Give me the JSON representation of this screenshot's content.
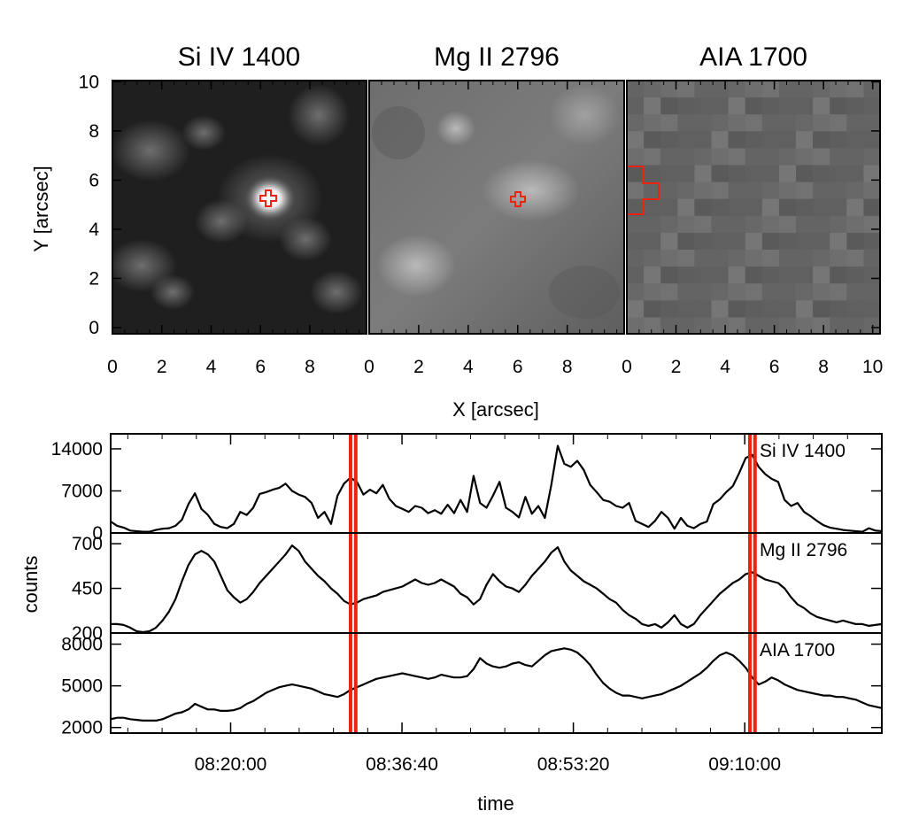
{
  "chart_data": [
    {
      "type": "image-panels",
      "panels": [
        {
          "title": "Si IV 1400",
          "style": "bright-kernel",
          "marker": "cross"
        },
        {
          "title": "Mg II 2796",
          "style": "diffuse",
          "marker": "cross"
        },
        {
          "title": "AIA 1700",
          "style": "pixelated",
          "marker": "slit-outline"
        }
      ],
      "xlabel": "X [arcsec]",
      "ylabel": "Y [arcsec]",
      "xlim": [
        0,
        10.3
      ],
      "ylim": [
        0,
        10.3
      ],
      "x_ticks_left": [
        "0",
        "2",
        "4",
        "6",
        "8"
      ],
      "x_ticks_last": [
        "0",
        "2",
        "4",
        "6",
        "8",
        "10"
      ],
      "y_ticks": [
        "0",
        "2",
        "4",
        "6",
        "8",
        "10"
      ],
      "markers_arcsec": {
        "cross_panel1": [
          6.1,
          5.2
        ],
        "cross_panel2": [
          6.0,
          5.3
        ]
      }
    },
    {
      "type": "line",
      "xlabel": "time",
      "ylabel": "counts",
      "x_ticks": [
        "08:20:00",
        "08:36:40",
        "08:53:20",
        "09:10:00"
      ],
      "x_tick_seconds": [
        30000,
        31000,
        32000,
        33000
      ],
      "xlim_seconds": [
        29300,
        33800
      ],
      "vertical_lines_seconds": [
        30700,
        30730,
        33030,
        33060
      ],
      "vertical_line_color": "#ee2211",
      "series": [
        {
          "name": "Si IV 1400",
          "ylim": [
            0,
            16500
          ],
          "y_ticks": [
            "0",
            "7000",
            "14000"
          ],
          "y_tick_values": [
            0,
            7000,
            14000
          ],
          "values": [
            1900,
            1200,
            900,
            400,
            300,
            200,
            200,
            500,
            700,
            800,
            1200,
            2200,
            4800,
            6600,
            4000,
            3000,
            1500,
            1000,
            800,
            1500,
            3500,
            3000,
            4200,
            6500,
            6800,
            7200,
            7500,
            8200,
            7000,
            6400,
            6000,
            5000,
            2500,
            3500,
            1500,
            6200,
            8200,
            9200,
            8500,
            6400,
            7200,
            6600,
            8000,
            5700,
            4500,
            4000,
            3500,
            4500,
            4200,
            3300,
            3800,
            3200,
            4700,
            3300,
            5500,
            3500,
            9500,
            5000,
            4200,
            6200,
            8500,
            4200,
            3500,
            2600,
            6000,
            3200,
            4500,
            2500,
            8000,
            14500,
            11500,
            11000,
            12000,
            10500,
            8000,
            6800,
            5500,
            5200,
            4500,
            4200,
            5000,
            2000,
            1500,
            1000,
            2000,
            3500,
            2500,
            700,
            2500,
            1200,
            800,
            1500,
            1900,
            4800,
            5600,
            6800,
            7800,
            10000,
            12500,
            13000,
            11000,
            9800,
            9000,
            8500,
            5500,
            4500,
            5000,
            3500,
            2800,
            2000,
            1300,
            900,
            700,
            500,
            400,
            300,
            200,
            800,
            400,
            300
          ]
        },
        {
          "name": "Mg II 2796",
          "ylim": [
            200,
            760
          ],
          "y_ticks": [
            "200",
            "450",
            "700"
          ],
          "y_tick_values": [
            200,
            450,
            700
          ],
          "values": [
            250,
            250,
            245,
            230,
            210,
            205,
            210,
            230,
            270,
            320,
            390,
            490,
            580,
            640,
            660,
            640,
            600,
            520,
            440,
            400,
            370,
            390,
            430,
            480,
            520,
            560,
            600,
            640,
            690,
            660,
            600,
            560,
            520,
            490,
            450,
            420,
            380,
            360,
            370,
            390,
            400,
            410,
            430,
            440,
            450,
            460,
            480,
            500,
            480,
            470,
            480,
            500,
            480,
            460,
            420,
            400,
            360,
            390,
            470,
            530,
            490,
            460,
            450,
            430,
            470,
            520,
            560,
            600,
            650,
            680,
            600,
            550,
            520,
            490,
            470,
            450,
            420,
            390,
            370,
            330,
            300,
            280,
            250,
            240,
            250,
            230,
            260,
            300,
            250,
            230,
            250,
            300,
            340,
            380,
            420,
            450,
            480,
            500,
            530,
            540,
            520,
            500,
            490,
            480,
            450,
            400,
            360,
            340,
            310,
            290,
            280,
            270,
            260,
            270,
            260,
            250,
            250,
            240,
            245,
            250
          ]
        },
        {
          "name": "AIA 1700",
          "ylim": [
            1600,
            8800
          ],
          "y_ticks": [
            "2000",
            "5000",
            "8000"
          ],
          "y_tick_values": [
            2000,
            5000,
            8000
          ],
          "values": [
            2600,
            2700,
            2700,
            2600,
            2550,
            2500,
            2500,
            2500,
            2600,
            2800,
            3000,
            3100,
            3300,
            3700,
            3500,
            3300,
            3300,
            3200,
            3200,
            3250,
            3400,
            3700,
            3900,
            4200,
            4500,
            4700,
            4900,
            5000,
            5100,
            5000,
            4900,
            4800,
            4600,
            4400,
            4300,
            4200,
            4400,
            4700,
            4900,
            5100,
            5300,
            5500,
            5600,
            5700,
            5800,
            5900,
            5800,
            5700,
            5600,
            5500,
            5600,
            5800,
            5700,
            5600,
            5600,
            5700,
            6200,
            7000,
            6600,
            6400,
            6300,
            6400,
            6600,
            6700,
            6500,
            6400,
            6800,
            7200,
            7500,
            7600,
            7700,
            7600,
            7400,
            7000,
            6500,
            5800,
            5200,
            4800,
            4500,
            4300,
            4300,
            4200,
            4100,
            4200,
            4300,
            4400,
            4600,
            4800,
            5000,
            5300,
            5600,
            5900,
            6300,
            6800,
            7200,
            7400,
            7200,
            6800,
            6300,
            5600,
            5100,
            5300,
            5600,
            5400,
            5100,
            4900,
            4700,
            4600,
            4500,
            4400,
            4300,
            4300,
            4200,
            4200,
            4100,
            4000,
            3800,
            3600,
            3500,
            3400
          ]
        }
      ]
    }
  ]
}
